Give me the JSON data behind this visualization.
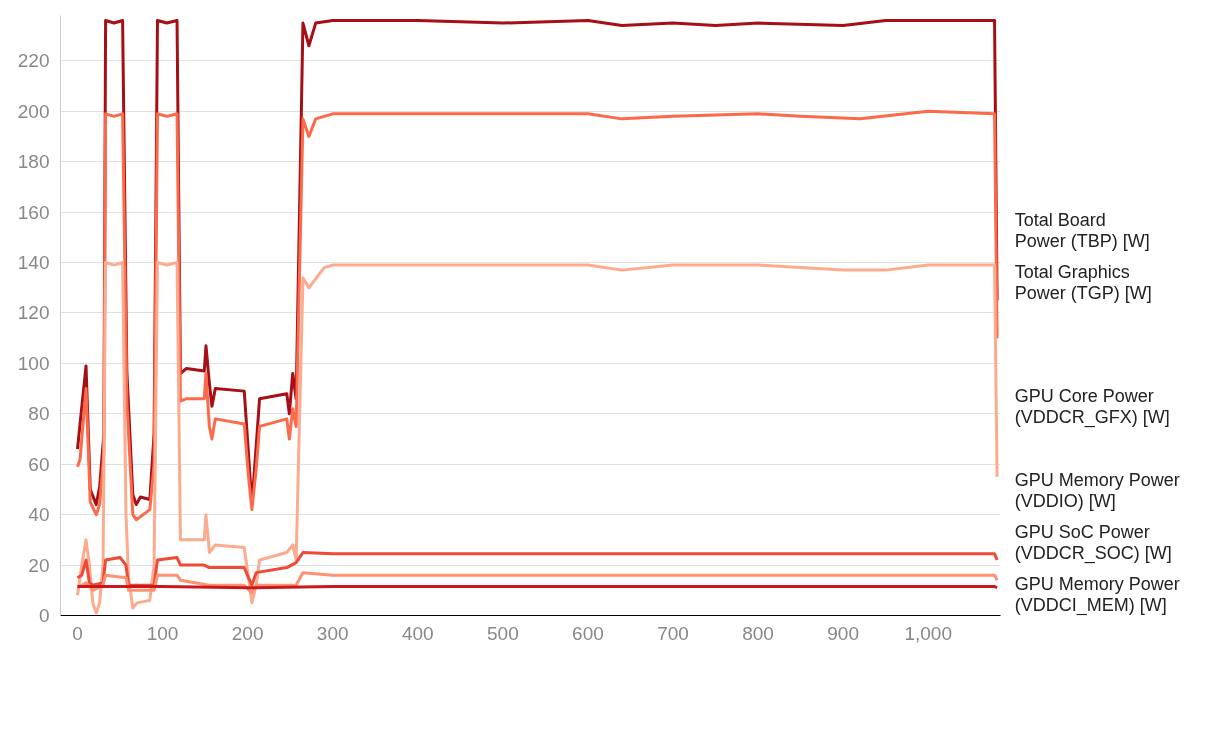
{
  "chart_data": {
    "type": "line",
    "xlim": [
      -20,
      1085
    ],
    "ylim": [
      0,
      238
    ],
    "xticks": [
      0,
      100,
      200,
      300,
      400,
      500,
      600,
      700,
      800,
      900,
      {
        "value": 1000,
        "label": "1,000"
      }
    ],
    "yticks": [
      0,
      20,
      40,
      60,
      80,
      100,
      120,
      140,
      160,
      180,
      200,
      220
    ],
    "grid": "y",
    "series": [
      {
        "name": "Total Board Power (TBP) [W]",
        "color": "#a50f15",
        "x": [
          0,
          3,
          10,
          15,
          22,
          26,
          31,
          33,
          43,
          53,
          58,
          65,
          69,
          74,
          85,
          90,
          94,
          105,
          117,
          121,
          128,
          149,
          151,
          155,
          158,
          162,
          196,
          201,
          205,
          210,
          214,
          246,
          249,
          253,
          257,
          265,
          272,
          280,
          300,
          400,
          500,
          600,
          640,
          700,
          750,
          800,
          900,
          950,
          1000,
          1050,
          1078,
          1081
        ],
        "values": [
          66,
          76,
          99,
          50,
          44,
          51,
          72,
          236,
          235,
          236,
          97,
          48,
          44,
          47,
          46,
          72,
          236,
          235,
          236,
          96,
          98,
          97,
          107,
          92,
          83,
          90,
          89,
          64,
          44,
          67,
          86,
          88,
          80,
          96,
          86,
          235,
          226,
          235,
          236,
          236,
          235,
          236,
          234,
          235,
          234,
          235,
          234,
          236,
          236,
          236,
          236,
          125
        ]
      },
      {
        "name": "Total Graphics Power (TGP) [W]",
        "color": "#fb6a4a",
        "x": [
          0,
          3,
          10,
          15,
          22,
          26,
          31,
          33,
          43,
          53,
          58,
          65,
          69,
          85,
          90,
          94,
          105,
          117,
          121,
          128,
          149,
          151,
          155,
          158,
          162,
          196,
          201,
          205,
          210,
          214,
          246,
          249,
          253,
          257,
          265,
          272,
          280,
          300,
          400,
          500,
          600,
          640,
          700,
          800,
          850,
          920,
          1000,
          1078,
          1081
        ],
        "values": [
          59,
          62,
          90,
          45,
          40,
          44,
          65,
          199,
          198,
          199,
          85,
          40,
          38,
          42,
          60,
          199,
          198,
          199,
          85,
          86,
          86,
          96,
          75,
          70,
          78,
          76,
          55,
          42,
          58,
          75,
          78,
          70,
          82,
          75,
          197,
          190,
          197,
          199,
          199,
          199,
          199,
          197,
          198,
          199,
          198,
          197,
          200,
          199,
          110
        ]
      },
      {
        "name": "GPU Core Power (VDDCR_GFX) [W]",
        "color": "#fcab8f",
        "x": [
          0,
          5,
          10,
          14,
          18,
          22,
          26,
          30,
          33,
          43,
          53,
          57,
          60,
          65,
          70,
          85,
          90,
          94,
          105,
          117,
          121,
          128,
          149,
          151,
          155,
          162,
          196,
          201,
          205,
          210,
          214,
          246,
          253,
          257,
          265,
          272,
          290,
          300,
          400,
          500,
          600,
          640,
          700,
          800,
          900,
          950,
          1000,
          1078,
          1081
        ],
        "values": [
          8,
          20,
          30,
          20,
          5,
          1,
          5,
          20,
          140,
          139,
          140,
          40,
          15,
          3,
          5,
          6,
          20,
          140,
          139,
          140,
          30,
          30,
          30,
          40,
          25,
          28,
          27,
          15,
          5,
          12,
          22,
          25,
          28,
          22,
          134,
          130,
          138,
          139,
          139,
          139,
          139,
          137,
          139,
          139,
          137,
          137,
          139,
          139,
          55
        ]
      },
      {
        "name": "GPU Memory Power (VDDIO) [W]",
        "color": "#ef4a35",
        "x": [
          0,
          5,
          10,
          14,
          18,
          30,
          33,
          50,
          57,
          60,
          90,
          94,
          117,
          121,
          149,
          155,
          196,
          201,
          205,
          210,
          246,
          257,
          265,
          300,
          500,
          700,
          900,
          1078,
          1081
        ],
        "values": [
          15,
          16,
          22,
          13,
          12,
          13,
          22,
          23,
          20,
          12,
          12,
          22,
          23,
          20,
          20,
          19,
          19,
          15,
          12,
          17,
          19,
          21,
          25,
          24.5,
          24.5,
          24.5,
          24.5,
          24.5,
          22
        ]
      },
      {
        "name": "GPU SoC Power (VDDCR_SOC) [W]",
        "color": "#fc9272",
        "x": [
          0,
          10,
          18,
          30,
          33,
          57,
          60,
          90,
          94,
          117,
          121,
          155,
          196,
          205,
          210,
          257,
          265,
          300,
          1078,
          1081
        ],
        "values": [
          11,
          13,
          10,
          12,
          16,
          15,
          10,
          10,
          16,
          16,
          14,
          12,
          12,
          9,
          12,
          12,
          17,
          16,
          16,
          14
        ]
      },
      {
        "name": "GPU Memory Power (VDDCI_MEM) [W]",
        "color": "#cb181d",
        "x": [
          0,
          100,
          200,
          300,
          600,
          900,
          1078,
          1081
        ],
        "values": [
          11.5,
          11.5,
          11,
          11.5,
          11.5,
          11.5,
          11.5,
          11
        ]
      }
    ]
  }
}
